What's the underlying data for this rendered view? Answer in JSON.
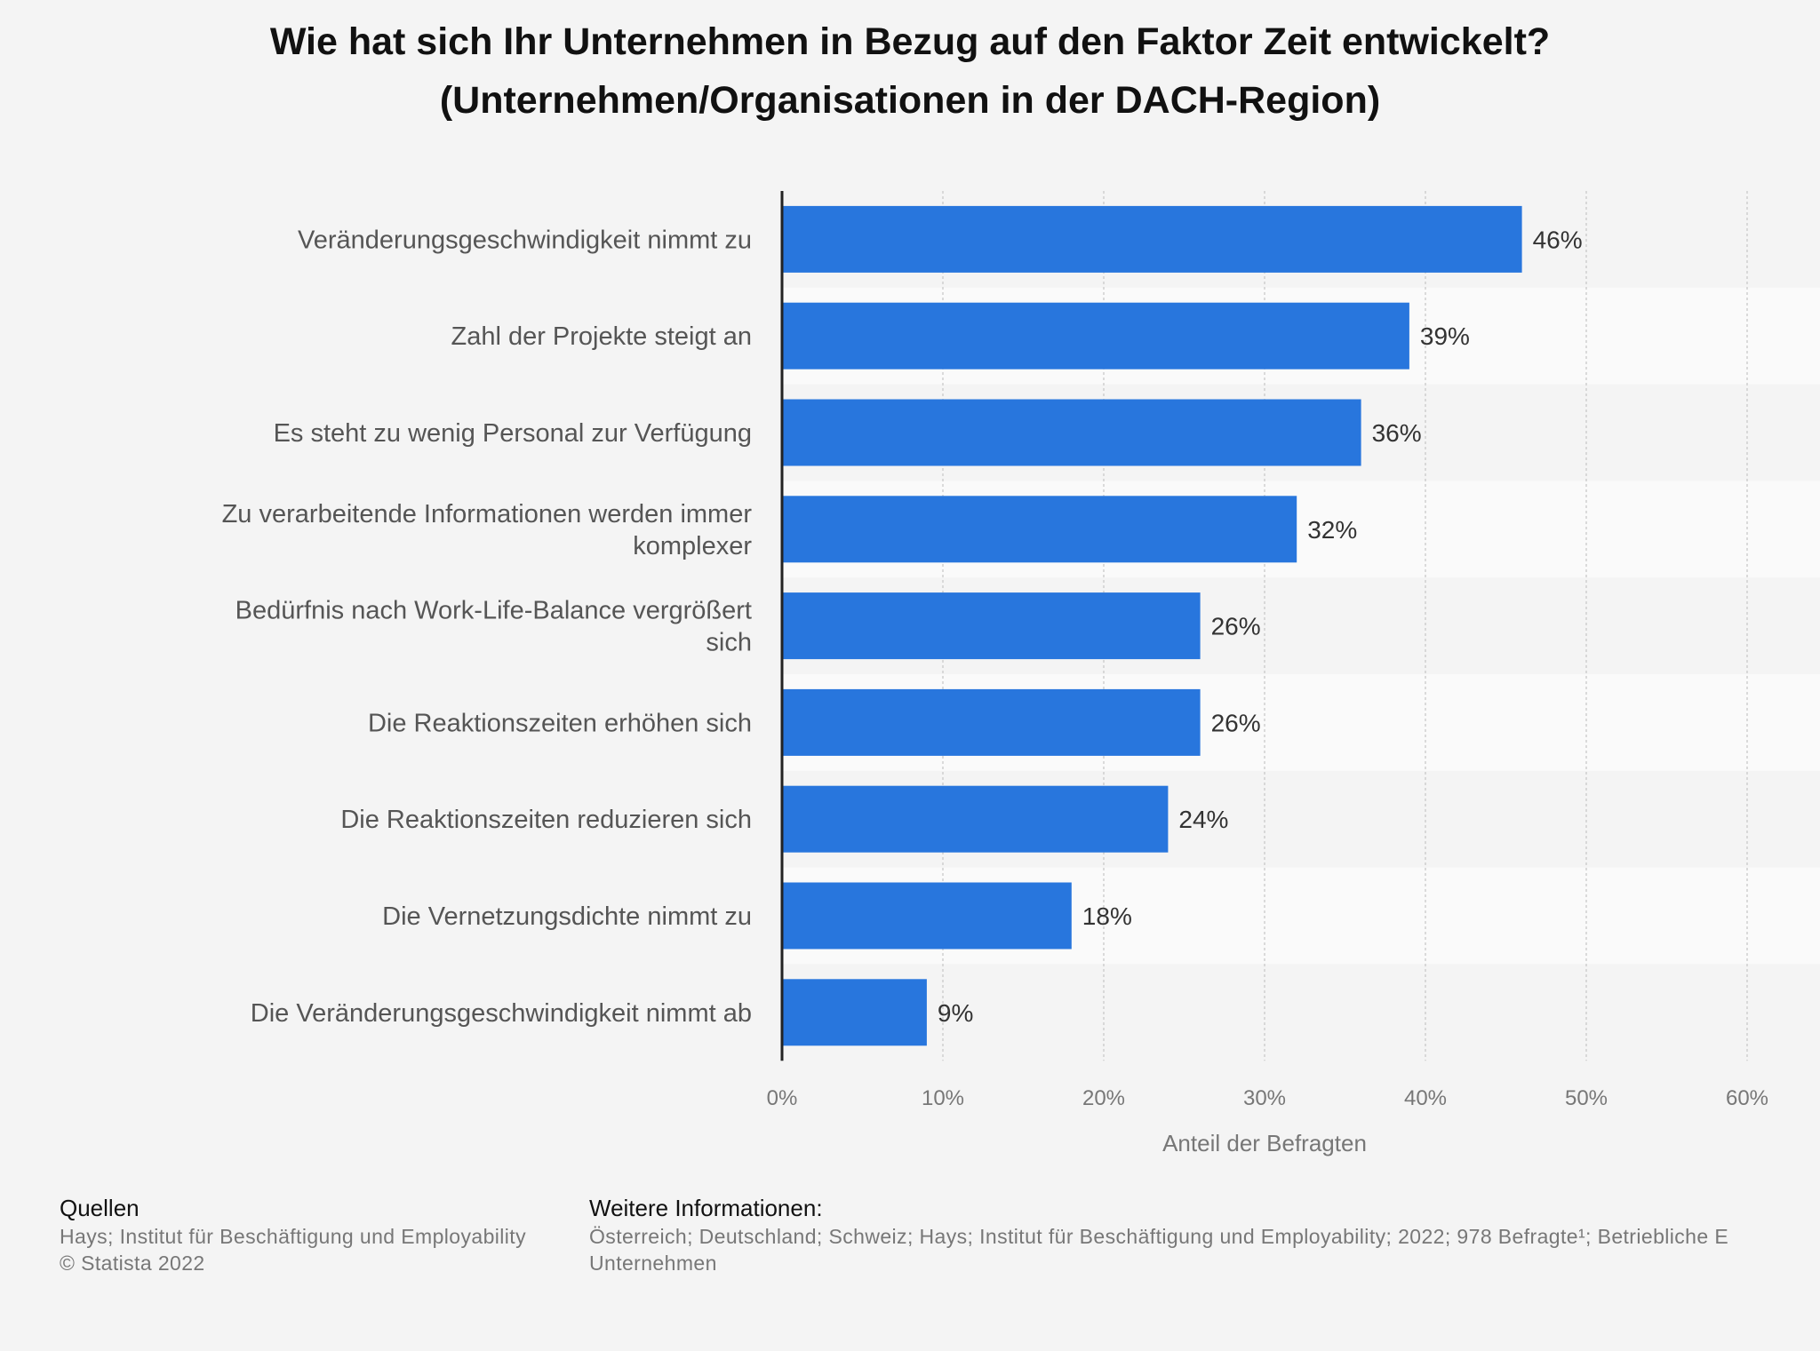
{
  "title": {
    "line1": "Wie hat sich Ihr Unternehmen in Bezug auf den Faktor Zeit entwickelt?",
    "line2": "(Unternehmen/Organisationen in der DACH-Region)"
  },
  "chart_data": {
    "type": "bar",
    "orientation": "horizontal",
    "title": "Wie hat sich Ihr Unternehmen in Bezug auf den Faktor Zeit entwickelt? (Unternehmen/Organisationen in der DACH-Region)",
    "categories": [
      [
        "Veränderungsgeschwindigkeit nimmt zu"
      ],
      [
        "Zahl der Projekte steigt an"
      ],
      [
        "Es steht zu wenig Personal zur Verfügung"
      ],
      [
        "Zu verarbeitende Informationen werden immer",
        "komplexer"
      ],
      [
        "Bedürfnis nach Work-Life-Balance vergrößert",
        "sich"
      ],
      [
        "Die Reaktionszeiten erhöhen sich"
      ],
      [
        "Die Reaktionszeiten reduzieren sich"
      ],
      [
        "Die Vernetzungsdichte nimmt zu"
      ],
      [
        "Die Veränderungsgeschwindigkeit nimmt ab"
      ]
    ],
    "values": [
      46,
      39,
      36,
      32,
      26,
      26,
      24,
      18,
      9
    ],
    "value_labels": [
      "46%",
      "39%",
      "36%",
      "32%",
      "26%",
      "26%",
      "24%",
      "18%",
      "9%"
    ],
    "xlabel": "Anteil der Befragten",
    "xlim": [
      0,
      60
    ],
    "xticks": [
      0,
      10,
      20,
      30,
      40,
      50,
      60
    ],
    "xtick_labels": [
      "0%",
      "10%",
      "20%",
      "30%",
      "40%",
      "50%",
      "60%"
    ],
    "grid": "vertical dotted",
    "bar_color": "#2876dd"
  },
  "footer": {
    "sources_heading": "Quellen",
    "sources_lines": [
      "Hays; Institut für Beschäftigung und Employability",
      "© Statista 2022"
    ],
    "info_heading": "Weitere Informationen:",
    "info_lines": [
      "Österreich; Deutschland; Schweiz; Hays; Institut für Beschäftigung und Employability; 2022; 978 Befragte¹; Betriebliche E",
      "Unternehmen"
    ]
  }
}
